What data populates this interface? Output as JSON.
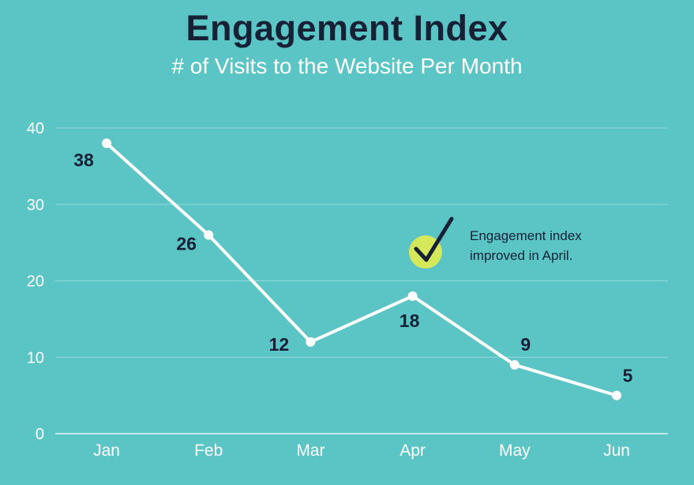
{
  "header": {
    "title": "Engagement Index",
    "subtitle": "# of Visits to the Website Per Month"
  },
  "annotation": {
    "line1": "Engagement index",
    "line2": "improved in April.",
    "icon": "checkmark-icon",
    "icon_color": "#d4e85a"
  },
  "colors": {
    "background": "#5bc4c4",
    "line": "#ffffff",
    "text_dark": "#172136"
  },
  "chart_data": {
    "type": "line",
    "categories": [
      "Jan",
      "Feb",
      "Mar",
      "Apr",
      "May",
      "Jun"
    ],
    "values": [
      38,
      26,
      12,
      18,
      9,
      5
    ],
    "data_labels": [
      "38",
      "26",
      "12",
      "18",
      "9",
      "5"
    ],
    "title": "Engagement Index",
    "subtitle": "# of Visits to the Website Per Month",
    "xlabel": "",
    "ylabel": "",
    "ylim": [
      0,
      40
    ],
    "yticks": [
      0,
      10,
      20,
      30,
      40
    ],
    "grid": true,
    "legend": "none"
  }
}
